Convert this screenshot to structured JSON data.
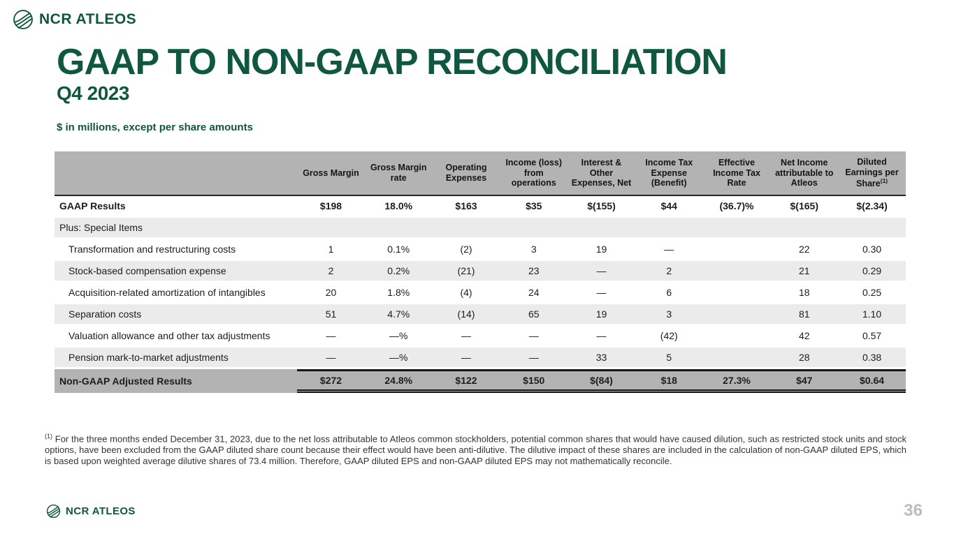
{
  "brand": {
    "name": "NCR ATLEOS",
    "logo_icon": "globe-icon",
    "green": "#0f5741"
  },
  "header": {
    "title": "GAAP TO NON-GAAP RECONCILIATION",
    "subtitle": "Q4 2023",
    "units_note": "$ in millions, except per share amounts"
  },
  "colors": {
    "brand_green": "#0f5741",
    "table_header_gray": "#b3b3b3",
    "stripe_gray": "#ebebeb",
    "total_row_gray": "#b3b3b3"
  },
  "table": {
    "label_col_width": "28.5%",
    "columns": [
      {
        "label": "Gross Margin"
      },
      {
        "label": "Gross Margin rate"
      },
      {
        "label": "Operating Expenses"
      },
      {
        "label": "Income (loss) from operations"
      },
      {
        "label": "Interest & Other Expenses, Net"
      },
      {
        "label": "Income Tax Expense (Benefit)"
      },
      {
        "label": "Effective Income Tax Rate"
      },
      {
        "label": "Net Income attributable to Atleos"
      },
      {
        "label": "Diluted Earnings per Share",
        "sup": "(1)"
      }
    ],
    "rows": [
      {
        "label": "GAAP Results",
        "style": "gaap",
        "bg": "white",
        "indent": false,
        "values": [
          "$198",
          "18.0%",
          "$163",
          "$35",
          "$(155)",
          "$44",
          "(36.7)%",
          "$(165)",
          "$(2.34)"
        ]
      },
      {
        "label": "Plus: Special Items",
        "style": "section",
        "bg": "light",
        "indent": false,
        "values": []
      },
      {
        "label": "Transformation and restructuring costs",
        "style": "item",
        "bg": "white",
        "indent": true,
        "values": [
          "1",
          "0.1%",
          "(2)",
          "3",
          "19",
          "—",
          "",
          "22",
          "0.30"
        ]
      },
      {
        "label": "Stock-based compensation expense",
        "style": "item",
        "bg": "light",
        "indent": true,
        "values": [
          "2",
          "0.2%",
          "(21)",
          "23",
          "—",
          "2",
          "",
          "21",
          "0.29"
        ]
      },
      {
        "label": "Acquisition-related amortization of intangibles",
        "style": "item",
        "bg": "white",
        "indent": true,
        "values": [
          "20",
          "1.8%",
          "(4)",
          "24",
          "—",
          "6",
          "",
          "18",
          "0.25"
        ]
      },
      {
        "label": "Separation costs",
        "style": "item",
        "bg": "light",
        "indent": true,
        "values": [
          "51",
          "4.7%",
          "(14)",
          "65",
          "19",
          "3",
          "",
          "81",
          "1.10"
        ]
      },
      {
        "label": "Valuation allowance and other tax adjustments",
        "style": "item",
        "bg": "white",
        "indent": true,
        "values": [
          "—",
          "—%",
          "—",
          "—",
          "—",
          "(42)",
          "",
          "42",
          "0.57"
        ]
      },
      {
        "label": "Pension mark-to-market adjustments",
        "style": "item",
        "bg": "light",
        "indent": true,
        "values": [
          "—",
          "—%",
          "—",
          "—",
          "33",
          "5",
          "",
          "28",
          "0.38"
        ]
      },
      {
        "label": "Non-GAAP Adjusted Results",
        "style": "total",
        "bg": "gray",
        "indent": false,
        "values": [
          "$272",
          "24.8%",
          "$122",
          "$150",
          "$(84)",
          "$18",
          "27.3%",
          "$47",
          "$0.64"
        ]
      }
    ]
  },
  "footnote": {
    "marker": "(1)",
    "text": "For the three months ended December 31, 2023, due to the net loss attributable to Atleos common stockholders, potential common shares that would have caused dilution, such as restricted stock units and stock options, have been excluded from the GAAP diluted share count because their effect would have been anti-dilutive. The dilutive impact of these shares are included in the calculation of non-GAAP diluted EPS, which is based upon weighted average dilutive shares of 73.4 million. Therefore, GAAP diluted EPS and non-GAAP diluted EPS may not mathematically reconcile."
  },
  "footer": {
    "brand": "NCR ATLEOS",
    "page_number": "36"
  }
}
